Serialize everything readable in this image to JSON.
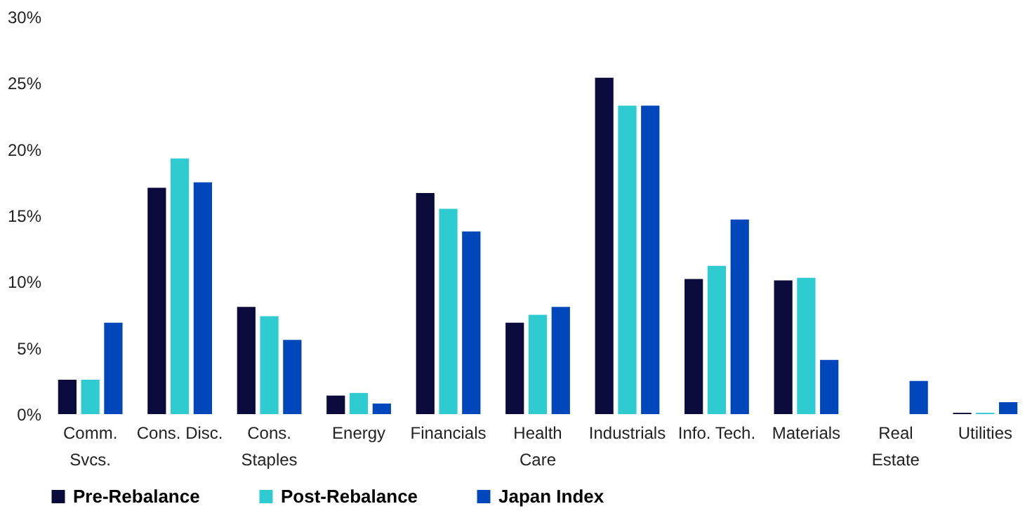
{
  "chart_data": {
    "type": "bar",
    "categories": [
      "Comm.\nSvcs.",
      "Cons. Disc.",
      "Cons.\nStaples",
      "Energy",
      "Financials",
      "Health\nCare",
      "Industrials",
      "Info. Tech.",
      "Materials",
      "Real\nEstate",
      "Utilities"
    ],
    "series": [
      {
        "name": "Pre-Rebalance",
        "color": "#0a0a3c",
        "values": [
          2.6,
          17.1,
          8.1,
          1.4,
          16.7,
          6.9,
          25.4,
          10.2,
          10.1,
          0,
          0.1
        ]
      },
      {
        "name": "Post-Rebalance",
        "color": "#2ecbd1",
        "values": [
          2.6,
          19.3,
          7.4,
          1.6,
          15.5,
          7.5,
          23.3,
          11.2,
          10.3,
          0,
          0.1
        ]
      },
      {
        "name": "Japan Index",
        "color": "#0047bb",
        "values": [
          6.9,
          17.5,
          5.6,
          0.8,
          13.8,
          8.1,
          23.3,
          14.7,
          4.1,
          2.5,
          0.9
        ]
      }
    ],
    "ylim": [
      0,
      30
    ],
    "yticks": [
      {
        "value": 0,
        "label": "0%"
      },
      {
        "value": 5,
        "label": "5%"
      },
      {
        "value": 10,
        "label": "10%"
      },
      {
        "value": 15,
        "label": "15%"
      },
      {
        "value": 20,
        "label": "20%"
      },
      {
        "value": 25,
        "label": "25%"
      },
      {
        "value": 30,
        "label": "30%"
      }
    ],
    "grid": false,
    "legend": "bottom"
  }
}
